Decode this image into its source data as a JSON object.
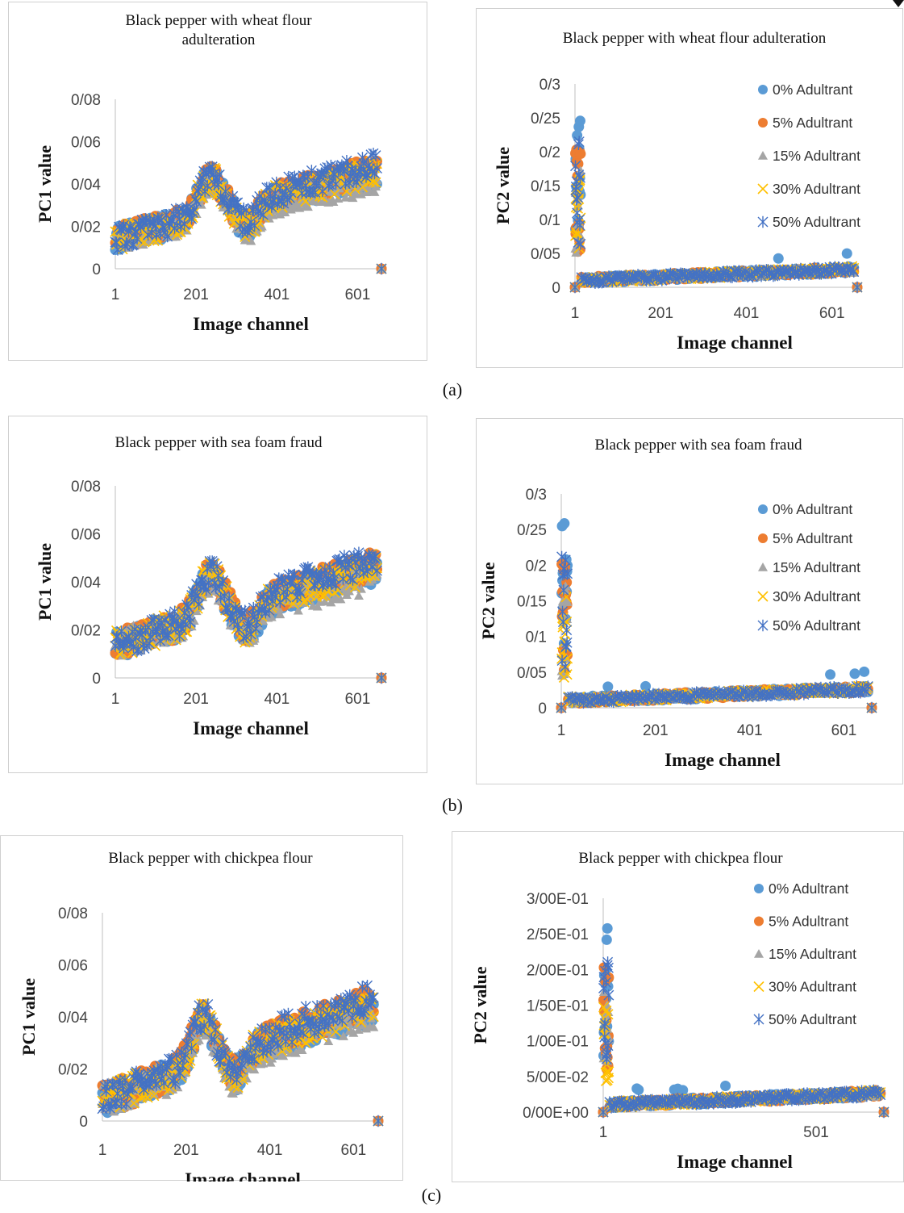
{
  "captions": [
    "(a)",
    "(b)",
    "(c)"
  ],
  "legend_items": [
    "0% Adultrant",
    "5% Adultrant",
    "15% Adultrant",
    "30% Adultrant",
    "50% Adultrant"
  ],
  "colors": {
    "0% Adultrant": "#5B9BD5",
    "5% Adultrant": "#ED7D31",
    "15% Adultrant": "#A5A5A5",
    "30% Adultrant": "#FFC000",
    "50% Adultrant": "#4472C4"
  },
  "markers": {
    "0% Adultrant": "circle",
    "5% Adultrant": "circle",
    "15% Adultrant": "triangle",
    "30% Adultrant": "x",
    "50% Adultrant": "asterisk"
  },
  "chart_data": [
    {
      "type": "scatter",
      "title": "Black pepper with wheat flour adulteration",
      "xlabel": "Image channel",
      "ylabel": "PC1 value",
      "xlim": [
        1,
        660
      ],
      "ylim": [
        0,
        0.08
      ],
      "xticks": [
        "1",
        "201",
        "401",
        "601"
      ],
      "yticks": [
        "0",
        "0/02",
        "0/04",
        "0/06",
        "0/08"
      ],
      "legend": "none",
      "variant": "pc1a"
    },
    {
      "type": "scatter",
      "title": "Black pepper with wheat flour adulteration",
      "xlabel": "Image channel",
      "ylabel": "PC2 value",
      "xlim": [
        1,
        660
      ],
      "ylim": [
        0,
        0.3
      ],
      "xticks": [
        "1",
        "201",
        "401",
        "601"
      ],
      "yticks": [
        "0",
        "0/05",
        "0/1",
        "0/15",
        "0/2",
        "0/25",
        "0/3"
      ],
      "legend": "right",
      "variant": "pc2"
    },
    {
      "type": "scatter",
      "title": "Black pepper with sea foam fraud",
      "xlabel": "Image channel",
      "ylabel": "PC1 value",
      "xlim": [
        1,
        660
      ],
      "ylim": [
        0,
        0.08
      ],
      "xticks": [
        "1",
        "201",
        "401",
        "601"
      ],
      "yticks": [
        "0",
        "0/02",
        "0/04",
        "0/06",
        "0/08"
      ],
      "legend": "none",
      "variant": "pc1b"
    },
    {
      "type": "scatter",
      "title": "Black pepper with sea foam fraud",
      "xlabel": "Image channel",
      "ylabel": "PC2 value",
      "xlim": [
        1,
        660
      ],
      "ylim": [
        0,
        0.3
      ],
      "xticks": [
        "1",
        "201",
        "401",
        "601"
      ],
      "yticks": [
        "0",
        "0/05",
        "0/1",
        "0/15",
        "0/2",
        "0/25",
        "0/3"
      ],
      "legend": "right",
      "variant": "pc2"
    },
    {
      "type": "scatter",
      "title": "Black pepper with chickpea flour",
      "xlabel": "Image channel",
      "ylabel": "PC1 value",
      "xlim": [
        1,
        660
      ],
      "ylim": [
        0,
        0.08
      ],
      "xticks": [
        "1",
        "201",
        "401",
        "601"
      ],
      "yticks": [
        "0",
        "0/02",
        "0/04",
        "0/06",
        "0/08"
      ],
      "legend": "none",
      "variant": "pc1c"
    },
    {
      "type": "scatter",
      "title": "Black pepper with chickpea flour",
      "xlabel": "Image channel",
      "ylabel": "PC2 value",
      "xlim": [
        1,
        660
      ],
      "ylim": [
        0,
        0.3
      ],
      "xticks": [
        "1",
        "501"
      ],
      "yticks": [
        "0/00E+00",
        "5/00E-02",
        "1/00E-01",
        "1/50E-01",
        "2/00E-01",
        "2/50E-01",
        "3/00E-01"
      ],
      "legend": "right",
      "variant": "pc2"
    }
  ]
}
